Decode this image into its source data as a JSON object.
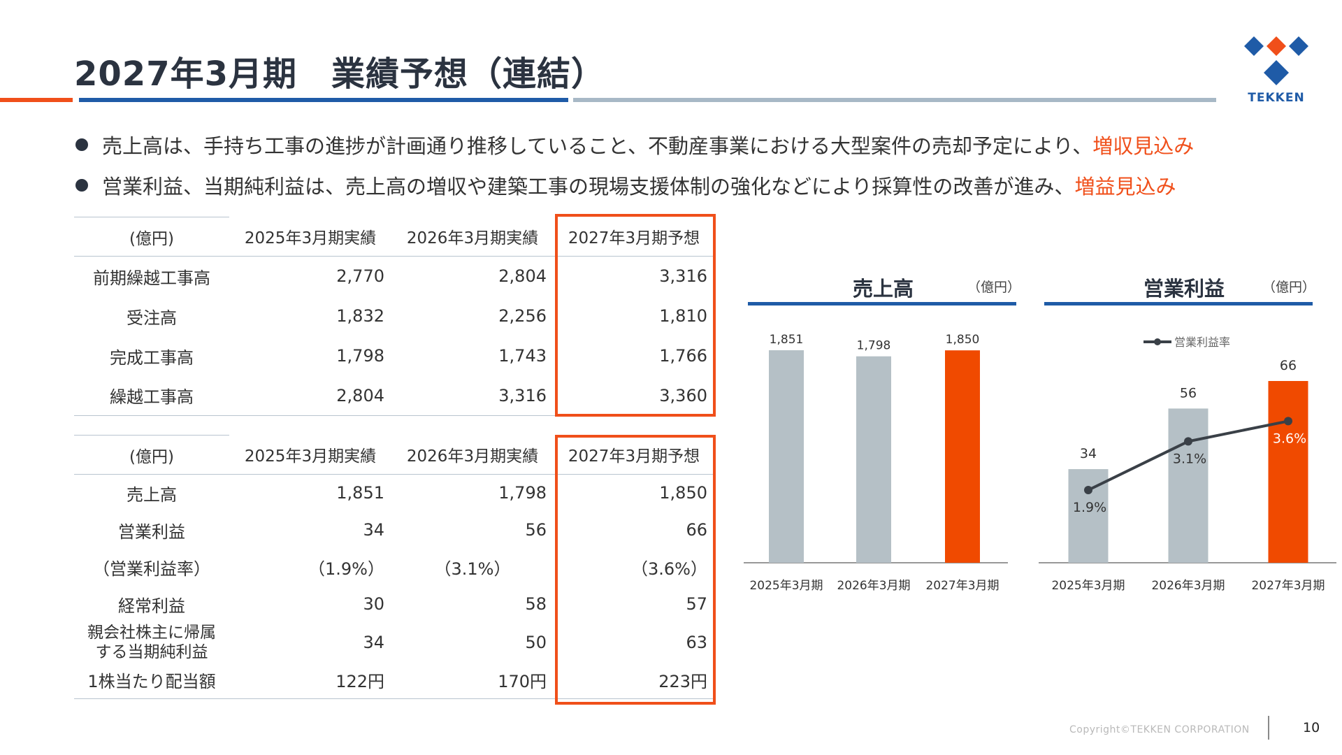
{
  "page": {
    "title": "2027年3月期　業績予想（連結）",
    "page_number": "10",
    "copyright": "Copyright©TEKKEN CORPORATION"
  },
  "logo": {
    "text": "TEKKEN",
    "colors": {
      "blue": "#1f5ba7",
      "red": "#f04f1a"
    }
  },
  "bullets": [
    {
      "text": "売上高は、手持ち工事の進捗が計画通り推移していること、不動産事業における大型案件の売却予定により、",
      "highlight": "増収見込み"
    },
    {
      "text": "営業利益、当期純利益は、売上高の増収や建築工事の現場支援体制の強化などにより採算性の改善が進み、",
      "highlight": "増益見込み"
    }
  ],
  "table1": {
    "headers": [
      "(億円)",
      "2025年3月期実績",
      "2026年3月期実績",
      "2027年3月期予想"
    ],
    "rows": [
      [
        "前期繰越工事高",
        "2,770",
        "2,804",
        "3,316"
      ],
      [
        "受注高",
        "1,832",
        "2,256",
        "1,810"
      ],
      [
        "完成工事高",
        "1,798",
        "1,743",
        "1,766"
      ],
      [
        "繰越工事高",
        "2,804",
        "3,316",
        "3,360"
      ]
    ]
  },
  "table2": {
    "headers": [
      "(億円)",
      "2025年3月期実績",
      "2026年3月期実績",
      "2027年3月期予想"
    ],
    "rows": [
      [
        "売上高",
        "1,851",
        "1,798",
        "1,850"
      ],
      [
        "営業利益",
        "34",
        "56",
        "66"
      ],
      [
        "（営業利益率）",
        "（1.9%）",
        "（3.1%）",
        "（3.6%）"
      ],
      [
        "経常利益",
        "30",
        "58",
        "57"
      ],
      [
        "親会社株主に帰属\nする当期純利益",
        "34",
        "50",
        "63"
      ],
      [
        "1株当たり配当額",
        "122円",
        "170円",
        "223円"
      ]
    ]
  },
  "chart_data": [
    {
      "type": "bar",
      "title": "売上高",
      "unit": "（億円）",
      "categories": [
        "2025年3月期",
        "2026年3月期",
        "2027年3月期"
      ],
      "values": [
        1851,
        1798,
        1850
      ],
      "labels": [
        "1,851",
        "1,798",
        "1,850"
      ],
      "colors": [
        "#b5c0c6",
        "#b5c0c6",
        "#f04a00"
      ]
    },
    {
      "type": "bar",
      "title": "営業利益",
      "unit": "（億円）",
      "categories": [
        "2025年3月期",
        "2026年3月期",
        "2027年3月期"
      ],
      "values": [
        34,
        56,
        66
      ],
      "labels": [
        "34",
        "56",
        "66"
      ],
      "colors": [
        "#b5c0c6",
        "#b5c0c6",
        "#f04a00"
      ],
      "line_series": {
        "name": "営業利益率",
        "values": [
          1.9,
          3.1,
          3.6
        ],
        "labels": [
          "1.9%",
          "3.1%",
          "3.6%"
        ],
        "color": "#3a4047"
      }
    }
  ]
}
